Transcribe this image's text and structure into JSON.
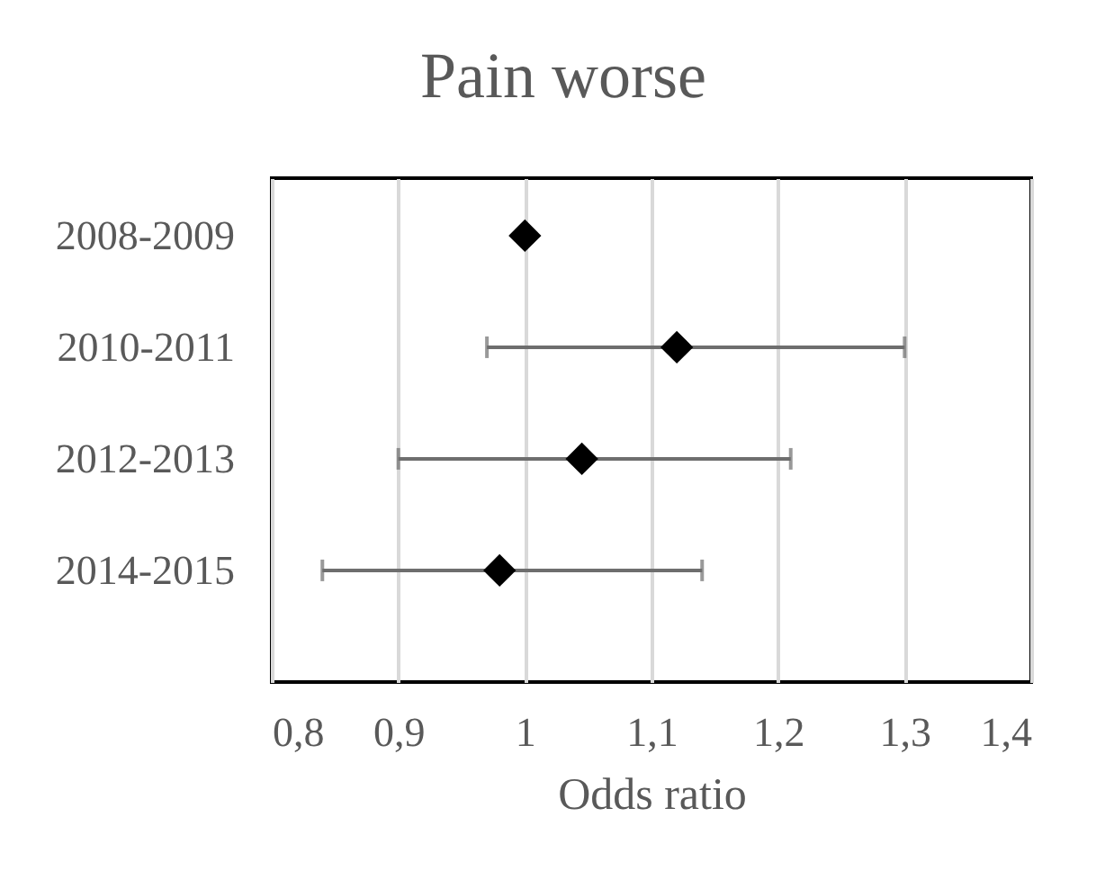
{
  "chart_data": {
    "type": "scatter",
    "title": "Pain worse",
    "xlabel": "Odds ratio",
    "categories": [
      "2008-2009",
      "2010-2011",
      "2012-2013",
      "2014-2015"
    ],
    "orientation": "horizontal",
    "values": [
      1,
      1.12,
      1.045,
      0.98
    ],
    "errors": [
      null,
      [
        0.97,
        1.3
      ],
      [
        0.9,
        1.21
      ],
      [
        0.84,
        1.14
      ]
    ],
    "color": "#000000",
    "marker": "diamond",
    "grid": "x",
    "xlim": [
      0.8,
      1.4
    ],
    "xticks": [
      {
        "value": 0.8,
        "label": "0,8"
      },
      {
        "value": 0.9,
        "label": "0,9"
      },
      1,
      {
        "value": 1.1,
        "label": "1,1"
      },
      {
        "value": 1.2,
        "label": "1,2"
      },
      {
        "value": 1.3,
        "label": "1,3"
      },
      {
        "value": 1.4,
        "label": "1,4"
      }
    ]
  }
}
